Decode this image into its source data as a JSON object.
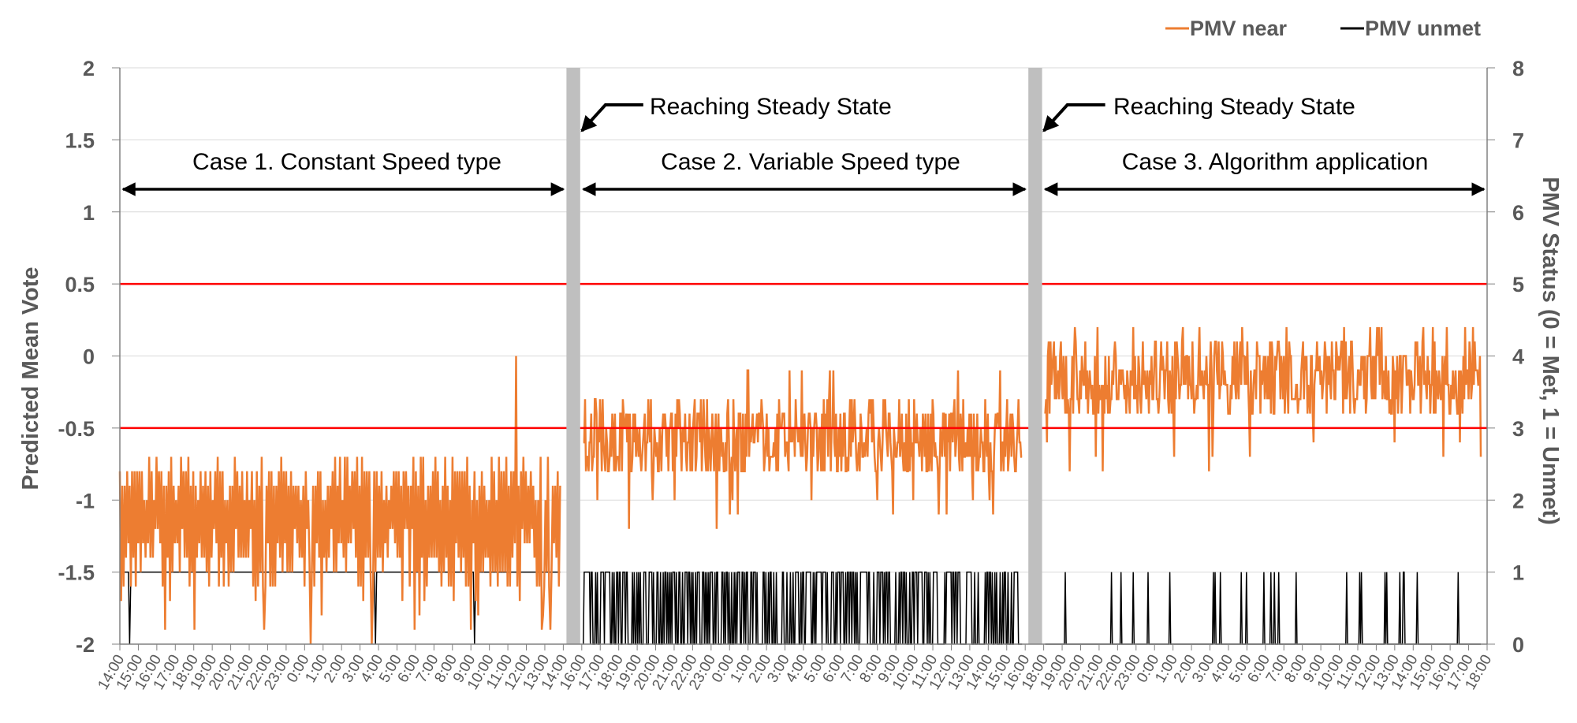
{
  "chart_data": {
    "type": "line",
    "y_left": {
      "label": "Predicted Mean Vote",
      "range": [
        -2,
        2
      ],
      "ticks": [
        "-2",
        "-1.5",
        "-1",
        "-0.5",
        "0",
        "0.5",
        "1",
        "1.5",
        "2"
      ]
    },
    "y_right": {
      "label": "PMV Status (0 = Met, 1 = Unmet)",
      "range": [
        0,
        8
      ],
      "ticks": [
        "0",
        "1",
        "2",
        "3",
        "4",
        "5",
        "6",
        "7",
        "8"
      ]
    },
    "x_ticks": [
      "14:00",
      "15:00",
      "16:00",
      "17:00",
      "18:00",
      "19:00",
      "20:00",
      "21:00",
      "22:00",
      "23:00",
      "0:00",
      "1:00",
      "2:00",
      "3:00",
      "4:00",
      "5:00",
      "6:00",
      "7:00",
      "8:00",
      "9:00",
      "10:00",
      "11:00",
      "12:00",
      "13:00",
      "14:00",
      "16:00",
      "17:00",
      "18:00",
      "19:00",
      "20:00",
      "21:00",
      "22:00",
      "23:00",
      "0:00",
      "1:00",
      "2:00",
      "3:00",
      "4:00",
      "5:00",
      "6:00",
      "7:00",
      "8:00",
      "9:00",
      "10:00",
      "11:00",
      "12:00",
      "13:00",
      "14:00",
      "15:00",
      "16:00",
      "18:00",
      "19:00",
      "20:00",
      "21:00",
      "22:00",
      "23:00",
      "0:00",
      "1:00",
      "2:00",
      "3:00",
      "4:00",
      "5:00",
      "6:00",
      "7:00",
      "8:00",
      "9:00",
      "10:00",
      "11:00",
      "12:00",
      "13:00",
      "14:00",
      "15:00",
      "16:00",
      "17:00",
      "18:00"
    ],
    "legend": [
      {
        "name": "PMV near",
        "color": "#ED7D31"
      },
      {
        "name": "PMV unmet",
        "color": "#000000"
      }
    ],
    "thresholds": {
      "values": [
        0.5,
        -0.5
      ],
      "color": "#FF0000"
    },
    "cases": [
      {
        "label": "Case 1. Constant Speed type",
        "tick_range": [
          0,
          24
        ],
        "pmv_min": -2.0,
        "pmv_max": 0.0,
        "pmv_typical_low": -1.6,
        "pmv_typical_high": -0.8,
        "unmet_status": 1
      },
      {
        "label": "Case 2. Variable Speed type",
        "tick_range": [
          25,
          49
        ],
        "pmv_min": -1.2,
        "pmv_max": -0.1,
        "pmv_typical_low": -0.9,
        "pmv_typical_high": -0.3,
        "unmet_status": 1
      },
      {
        "label": "Case 3. Algorithm application",
        "tick_range": [
          50,
          74
        ],
        "pmv_min": -0.8,
        "pmv_max": 0.2,
        "pmv_typical_low": -0.5,
        "pmv_typical_high": 0.1,
        "unmet_status": 0
      }
    ],
    "steady_state_label": "Reaching Steady State",
    "grid": true
  }
}
